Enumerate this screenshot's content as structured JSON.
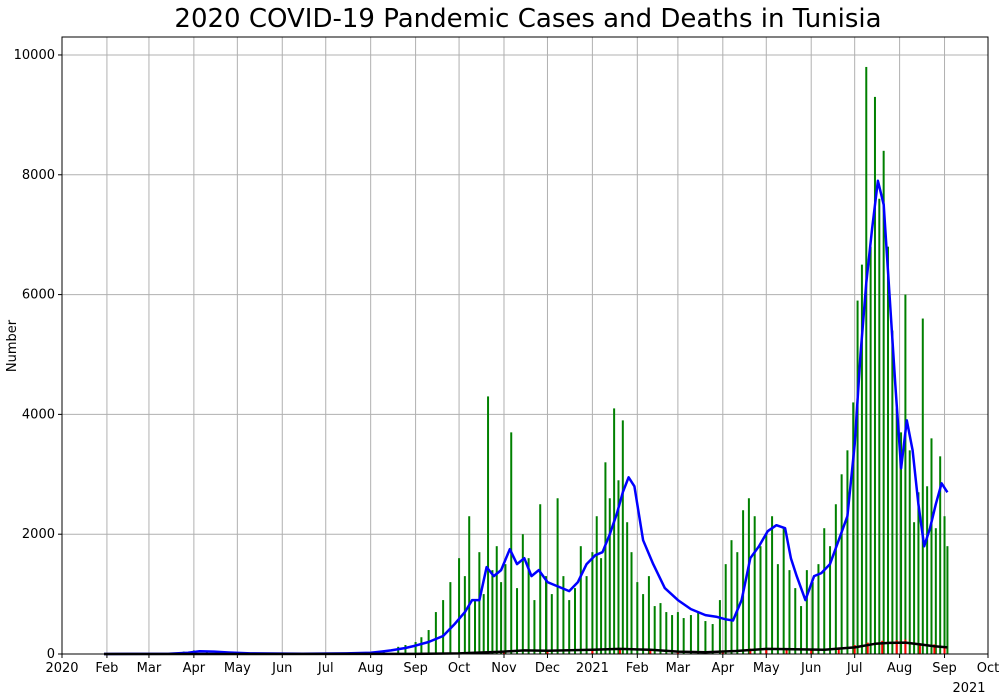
{
  "chart_data": {
    "type": "bar",
    "title": "2020 COVID-19 Pandemic Cases and Deaths in Tunisia",
    "xlabel": "",
    "ylabel": "Number",
    "ylim": [
      0,
      10300
    ],
    "xlim": [
      "2020-01-01",
      "2021-10-01"
    ],
    "grid": true,
    "y_ticks": [
      0,
      2000,
      4000,
      6000,
      8000,
      10000
    ],
    "x_ticks": [
      {
        "date": "2020-01-01",
        "label": "2020"
      },
      {
        "date": "2020-02-01",
        "label": "Feb"
      },
      {
        "date": "2020-03-01",
        "label": "Mar"
      },
      {
        "date": "2020-04-01",
        "label": "Apr"
      },
      {
        "date": "2020-05-01",
        "label": "May"
      },
      {
        "date": "2020-06-01",
        "label": "Jun"
      },
      {
        "date": "2020-07-01",
        "label": "Jul"
      },
      {
        "date": "2020-08-01",
        "label": "Aug"
      },
      {
        "date": "2020-09-01",
        "label": "Sep"
      },
      {
        "date": "2020-10-01",
        "label": "Oct"
      },
      {
        "date": "2020-11-01",
        "label": "Nov"
      },
      {
        "date": "2020-12-01",
        "label": "Dec"
      },
      {
        "date": "2021-01-01",
        "label": "2021"
      },
      {
        "date": "2021-02-01",
        "label": "Feb"
      },
      {
        "date": "2021-03-01",
        "label": "Mar"
      },
      {
        "date": "2021-04-01",
        "label": "Apr"
      },
      {
        "date": "2021-05-01",
        "label": "May"
      },
      {
        "date": "2021-06-01",
        "label": "Jun"
      },
      {
        "date": "2021-07-01",
        "label": "Jul"
      },
      {
        "date": "2021-08-01",
        "label": "Aug"
      },
      {
        "date": "2021-09-01",
        "label": "Sep"
      },
      {
        "date": "2021-10-01",
        "label": "Oct"
      }
    ],
    "x_secondary_label": "2021",
    "series": [
      {
        "kind": "bar",
        "color": "#008000",
        "x": [
          "2020-01-30",
          "2020-03-01",
          "2020-03-15",
          "2020-03-25",
          "2020-04-01",
          "2020-04-10",
          "2020-04-20",
          "2020-05-01",
          "2020-06-01",
          "2020-07-01",
          "2020-07-20",
          "2020-08-01",
          "2020-08-10",
          "2020-08-20",
          "2020-08-25",
          "2020-09-01",
          "2020-09-05",
          "2020-09-10",
          "2020-09-15",
          "2020-09-20",
          "2020-09-25",
          "2020-10-01",
          "2020-10-05",
          "2020-10-08",
          "2020-10-12",
          "2020-10-15",
          "2020-10-18",
          "2020-10-21",
          "2020-10-24",
          "2020-10-27",
          "2020-10-30",
          "2020-11-02",
          "2020-11-06",
          "2020-11-10",
          "2020-11-14",
          "2020-11-18",
          "2020-11-22",
          "2020-11-26",
          "2020-11-30",
          "2020-12-04",
          "2020-12-08",
          "2020-12-12",
          "2020-12-16",
          "2020-12-20",
          "2020-12-24",
          "2020-12-28",
          "2021-01-01",
          "2021-01-04",
          "2021-01-07",
          "2021-01-10",
          "2021-01-13",
          "2021-01-16",
          "2021-01-19",
          "2021-01-22",
          "2021-01-25",
          "2021-01-28",
          "2021-02-01",
          "2021-02-05",
          "2021-02-09",
          "2021-02-13",
          "2021-02-17",
          "2021-02-21",
          "2021-02-25",
          "2021-03-01",
          "2021-03-05",
          "2021-03-10",
          "2021-03-15",
          "2021-03-20",
          "2021-03-25",
          "2021-03-30",
          "2021-04-03",
          "2021-04-07",
          "2021-04-11",
          "2021-04-15",
          "2021-04-19",
          "2021-04-23",
          "2021-04-27",
          "2021-05-01",
          "2021-05-05",
          "2021-05-09",
          "2021-05-13",
          "2021-05-17",
          "2021-05-21",
          "2021-05-25",
          "2021-05-29",
          "2021-06-02",
          "2021-06-06",
          "2021-06-10",
          "2021-06-14",
          "2021-06-18",
          "2021-06-22",
          "2021-06-26",
          "2021-06-30",
          "2021-07-03",
          "2021-07-06",
          "2021-07-09",
          "2021-07-12",
          "2021-07-15",
          "2021-07-18",
          "2021-07-21",
          "2021-07-24",
          "2021-07-27",
          "2021-07-30",
          "2021-08-02",
          "2021-08-05",
          "2021-08-08",
          "2021-08-11",
          "2021-08-14",
          "2021-08-17",
          "2021-08-20",
          "2021-08-23",
          "2021-08-26",
          "2021-08-29",
          "2021-09-01",
          "2021-09-03"
        ],
        "values": [
          0,
          5,
          20,
          40,
          60,
          50,
          20,
          10,
          5,
          5,
          10,
          25,
          60,
          120,
          150,
          200,
          280,
          400,
          700,
          900,
          1200,
          1600,
          1300,
          2300,
          900,
          1700,
          1000,
          4300,
          1400,
          1800,
          1200,
          1500,
          3700,
          1100,
          2000,
          1600,
          900,
          2500,
          1300,
          1000,
          2600,
          1300,
          900,
          1100,
          1800,
          1300,
          1700,
          2300,
          1600,
          3200,
          2600,
          4100,
          2900,
          3900,
          2200,
          1700,
          1200,
          1000,
          1300,
          800,
          850,
          700,
          650,
          700,
          600,
          650,
          700,
          550,
          500,
          900,
          1500,
          1900,
          1700,
          2400,
          2600,
          2300,
          1800,
          2000,
          2300,
          1500,
          2100,
          1400,
          1100,
          800,
          1400,
          1200,
          1500,
          2100,
          1800,
          2500,
          3000,
          3400,
          4200,
          5900,
          6500,
          9800,
          6800,
          9300,
          7600,
          8400,
          6800,
          5400,
          4100,
          3700,
          6000,
          3400,
          2200,
          2700,
          5600,
          2800,
          3600,
          2100,
          3300,
          2300,
          1800
        ]
      },
      {
        "kind": "bar",
        "color": "#ff0000",
        "x": [
          "2020-10-01",
          "2020-11-01",
          "2020-12-01",
          "2021-01-01",
          "2021-01-20",
          "2021-02-10",
          "2021-03-01",
          "2021-04-01",
          "2021-04-20",
          "2021-05-01",
          "2021-05-15",
          "2021-06-01",
          "2021-06-20",
          "2021-07-01",
          "2021-07-10",
          "2021-07-20",
          "2021-07-30",
          "2021-08-05",
          "2021-08-15",
          "2021-08-25",
          "2021-09-01"
        ],
        "values": [
          10,
          30,
          60,
          70,
          90,
          80,
          40,
          60,
          90,
          100,
          90,
          70,
          110,
          150,
          190,
          220,
          230,
          240,
          180,
          160,
          120
        ]
      },
      {
        "kind": "line",
        "color": "#0000ff",
        "x": [
          "2020-01-30",
          "2020-03-15",
          "2020-03-28",
          "2020-04-05",
          "2020-04-15",
          "2020-04-25",
          "2020-05-10",
          "2020-06-15",
          "2020-07-15",
          "2020-08-01",
          "2020-08-15",
          "2020-08-25",
          "2020-09-01",
          "2020-09-10",
          "2020-09-20",
          "2020-09-28",
          "2020-10-05",
          "2020-10-10",
          "2020-10-15",
          "2020-10-20",
          "2020-10-25",
          "2020-10-30",
          "2020-11-05",
          "2020-11-10",
          "2020-11-15",
          "2020-11-20",
          "2020-11-25",
          "2020-12-01",
          "2020-12-06",
          "2020-12-11",
          "2020-12-16",
          "2020-12-22",
          "2020-12-28",
          "2021-01-03",
          "2021-01-08",
          "2021-01-13",
          "2021-01-18",
          "2021-01-22",
          "2021-01-26",
          "2021-01-30",
          "2021-02-05",
          "2021-02-12",
          "2021-02-20",
          "2021-03-01",
          "2021-03-10",
          "2021-03-20",
          "2021-03-28",
          "2021-04-03",
          "2021-04-08",
          "2021-04-14",
          "2021-04-20",
          "2021-04-26",
          "2021-05-02",
          "2021-05-08",
          "2021-05-14",
          "2021-05-18",
          "2021-05-22",
          "2021-05-28",
          "2021-06-03",
          "2021-06-08",
          "2021-06-14",
          "2021-06-20",
          "2021-06-26",
          "2021-07-01",
          "2021-07-05",
          "2021-07-09",
          "2021-07-13",
          "2021-07-17",
          "2021-07-21",
          "2021-07-25",
          "2021-07-29",
          "2021-08-02",
          "2021-08-06",
          "2021-08-10",
          "2021-08-14",
          "2021-08-18",
          "2021-08-22",
          "2021-08-26",
          "2021-08-30",
          "2021-09-03"
        ],
        "values": [
          0,
          5,
          20,
          45,
          40,
          25,
          10,
          5,
          10,
          20,
          60,
          100,
          140,
          200,
          300,
          500,
          700,
          900,
          900,
          1450,
          1300,
          1400,
          1750,
          1500,
          1600,
          1300,
          1400,
          1200,
          1150,
          1100,
          1050,
          1200,
          1500,
          1650,
          1700,
          2000,
          2350,
          2700,
          2950,
          2800,
          1900,
          1500,
          1100,
          900,
          750,
          650,
          620,
          580,
          560,
          900,
          1600,
          1800,
          2050,
          2150,
          2100,
          1600,
          1300,
          900,
          1300,
          1350,
          1500,
          1900,
          2300,
          3500,
          5000,
          6200,
          7100,
          7900,
          7500,
          6000,
          4500,
          3100,
          3900,
          3400,
          2500,
          1800,
          2100,
          2500,
          2850,
          2700
        ]
      },
      {
        "kind": "line",
        "color": "#000000",
        "x": [
          "2020-01-30",
          "2020-09-01",
          "2020-10-01",
          "2020-11-01",
          "2020-11-15",
          "2020-12-01",
          "2021-01-01",
          "2021-01-20",
          "2021-02-10",
          "2021-03-01",
          "2021-03-20",
          "2021-04-10",
          "2021-05-01",
          "2021-05-20",
          "2021-06-10",
          "2021-07-01",
          "2021-07-15",
          "2021-07-25",
          "2021-08-05",
          "2021-08-15",
          "2021-08-25",
          "2021-09-03"
        ],
        "values": [
          0,
          2,
          10,
          40,
          60,
          55,
          70,
          85,
          70,
          40,
          30,
          50,
          85,
          80,
          70,
          110,
          170,
          185,
          190,
          160,
          130,
          110
        ]
      }
    ]
  }
}
